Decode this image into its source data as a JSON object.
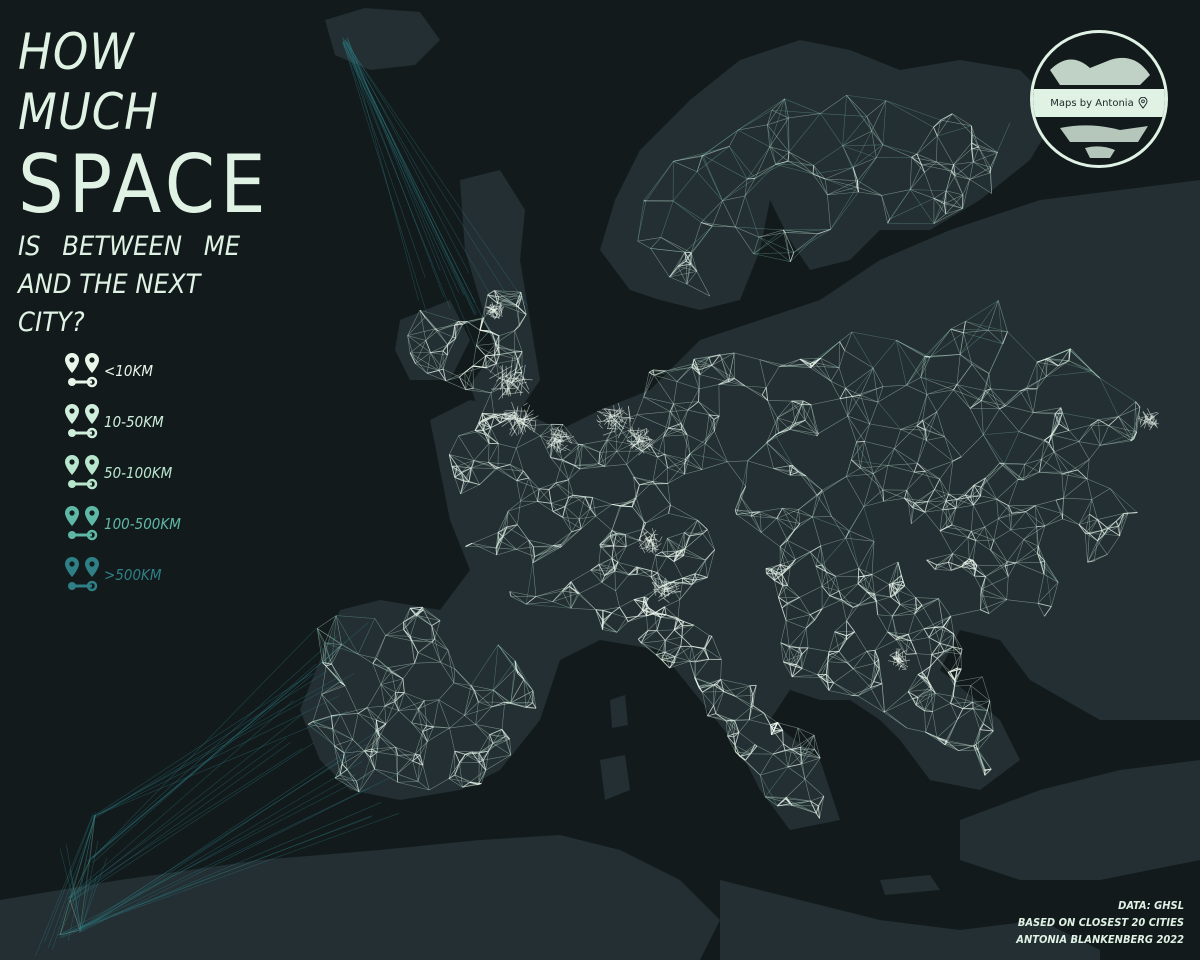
{
  "title": {
    "line1": "HOW MUCH",
    "line2": "SPACE",
    "line3": "IS BETWEEN ME",
    "line4": "AND THE NEXT CITY?"
  },
  "legend": [
    {
      "label": "<10KM",
      "color": "#e8f6ea",
      "icon": "pin-pair-icon"
    },
    {
      "label": "10-50KM",
      "color": "#cfeedc",
      "icon": "pin-pair-icon"
    },
    {
      "label": "50-100KM",
      "color": "#b8e6cc",
      "icon": "pin-pair-icon"
    },
    {
      "label": "100-500KM",
      "color": "#5fb8a6",
      "icon": "pin-pair-icon"
    },
    {
      "label": ">500KM",
      "color": "#2f7f86",
      "icon": "pin-pair-icon"
    }
  ],
  "badge": {
    "text": "Maps by Antonia",
    "icon": "map-pin-icon"
  },
  "credits": {
    "data": "DATA: GHSL",
    "method": "BASED ON CLOSEST 20 CITIES",
    "author": "ANTONIA BLANKENBERG 2022"
  },
  "colors": {
    "background": "#121a1c",
    "land": "#232f33",
    "text": "#dff2e4"
  }
}
